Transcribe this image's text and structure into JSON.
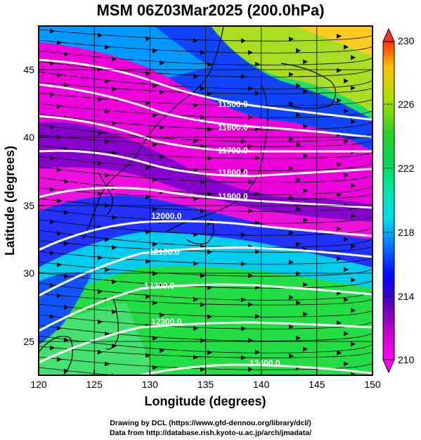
{
  "title": "MSM 06Z03Mar2025 (200.0hPa)",
  "x_axis": {
    "label": "Longitude (degrees)",
    "ticks": [
      "120",
      "125",
      "130",
      "135",
      "140",
      "145",
      "150"
    ]
  },
  "y_axis": {
    "label": "Latitude  (degrees)",
    "ticks": [
      "25",
      "30",
      "35",
      "40",
      "45"
    ]
  },
  "colorbar": {
    "ticks": [
      "230",
      "226",
      "222",
      "218",
      "214",
      "210"
    ]
  },
  "contours": [
    {
      "label": "11500.0"
    },
    {
      "label": "11600.0"
    },
    {
      "label": "11700.0"
    },
    {
      "label": "11800.0"
    },
    {
      "label": "11900.0"
    },
    {
      "label": "12000.0"
    },
    {
      "label": "12100.0"
    },
    {
      "label": "12200.0"
    },
    {
      "label": "12300.0"
    },
    {
      "label": "12400.0"
    }
  ],
  "footer": {
    "line1": "Drawing by DCL (https://www.gfd-dennou.org/library/dcl/)",
    "line2": "Data from http://database.rish.kyoto-u.ac.jp/arch/jmadata/"
  }
}
